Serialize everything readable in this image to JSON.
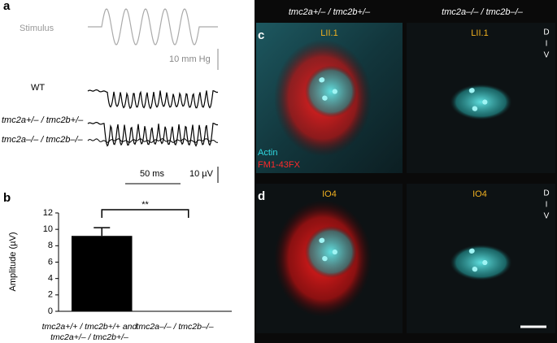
{
  "panel_a": {
    "label": "a",
    "stimulus": "Stimulus",
    "pressure_scale": "10 mm Hg",
    "traces": [
      "WT",
      "tmc2a+/– / tmc2b+/–",
      "tmc2a–/– / tmc2b–/–"
    ],
    "time_scale": "50 ms",
    "voltage_scale": "10 µV"
  },
  "chart_data": {
    "type": "bar",
    "panel_label": "b",
    "y_label": "Amplitude (µV)",
    "categories": [
      "tmc2a+/+ / tmc2b+/+ and tmc2a+/– / tmc2b+/–",
      "tmc2a–/– / tmc2b–/–"
    ],
    "values": [
      9.2,
      0
    ],
    "errors": [
      1.0,
      0
    ],
    "color": "#000000",
    "ylim": [
      0,
      12
    ],
    "yticks": [
      0,
      2,
      4,
      6,
      8,
      10,
      12
    ],
    "significance": "**"
  },
  "panel_c": {
    "label": "c",
    "headers": [
      "tmc2a+/– / tmc2b+/–",
      "tmc2a–/– / tmc2b–/–"
    ],
    "regions": [
      "LII.1",
      "LII.1"
    ],
    "orientation": [
      "D",
      "I",
      "V"
    ],
    "stains": [
      "Actin",
      "FM1-43FX"
    ]
  },
  "panel_d": {
    "label": "d",
    "regions": [
      "IO4",
      "IO4"
    ],
    "orientation": [
      "D",
      "I",
      "V"
    ]
  }
}
